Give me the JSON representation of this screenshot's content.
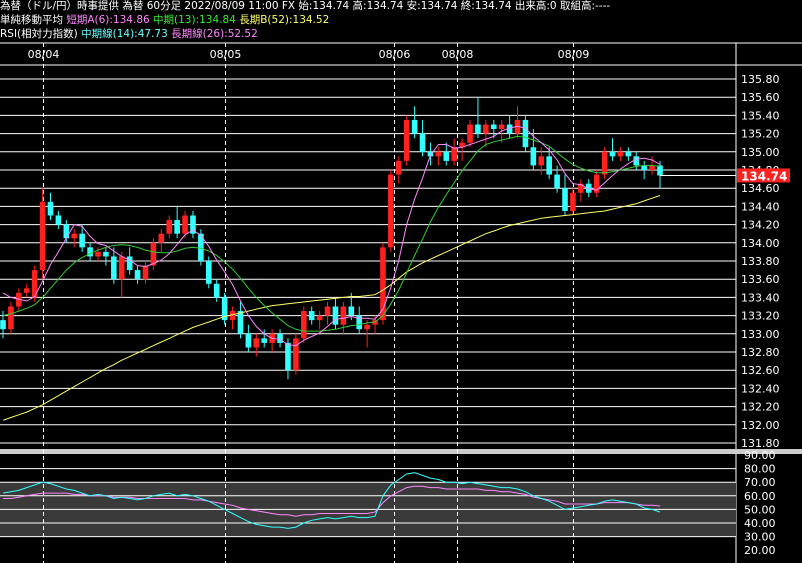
{
  "header": {
    "line1": "為替（ドル/円）時事提供 為替 60分足 2022/08/09 11:00 FX 始:134.74 高:134.74 安:134.74 終:134.74 出来高:0 取組高:----",
    "ma_label": "単純移動平均",
    "ma_short": "短期A(6):134.86",
    "ma_mid": "中期(13):134.84",
    "ma_long": "長期B(52):134.52",
    "rsi_label": "RSI(相対力指数)",
    "rsi_mid": "中期線(14):47.73",
    "rsi_long": "長期線(26):52.52"
  },
  "colors": {
    "bg": "#000000",
    "up": "#ff2020",
    "down": "#33ffff",
    "ma_short": "#ff88ff",
    "ma_mid": "#33cc33",
    "ma_long": "#ffff66",
    "rsi_mid": "#33ffff",
    "rsi_long": "#ff88ff",
    "price_tag_bg": "#ff2020",
    "grid": "#ffffff"
  },
  "chart_data": [
    {
      "type": "candlestick",
      "date_labels": [
        "08/04",
        "08/05",
        "08/06",
        "08/08",
        "08/09"
      ],
      "ylim": [
        131.7,
        135.9
      ],
      "y_ticks": [
        "135.80",
        "135.60",
        "135.40",
        "135.20",
        "135.00",
        "134.80",
        "134.60",
        "134.40",
        "134.20",
        "134.00",
        "133.80",
        "133.60",
        "133.40",
        "133.20",
        "133.00",
        "132.80",
        "132.60",
        "132.40",
        "132.20",
        "132.00",
        "131.80"
      ],
      "current_price": "134.74",
      "candles": [
        [
          133.15,
          133.25,
          132.95,
          133.05
        ],
        [
          133.05,
          133.35,
          133.0,
          133.3
        ],
        [
          133.3,
          133.5,
          133.25,
          133.45
        ],
        [
          133.45,
          133.55,
          133.4,
          133.5
        ],
        [
          133.4,
          133.75,
          133.35,
          133.7
        ],
        [
          133.7,
          134.6,
          133.6,
          134.45
        ],
        [
          134.45,
          134.55,
          134.25,
          134.3
        ],
        [
          134.3,
          134.35,
          134.15,
          134.2
        ],
        [
          134.2,
          134.25,
          134.0,
          134.05
        ],
        [
          134.05,
          134.15,
          133.95,
          134.1
        ],
        [
          134.1,
          134.2,
          133.9,
          133.95
        ],
        [
          133.95,
          134.0,
          133.8,
          133.85
        ],
        [
          133.85,
          133.95,
          133.8,
          133.9
        ],
        [
          133.9,
          133.95,
          133.75,
          133.85
        ],
        [
          133.85,
          133.95,
          133.55,
          133.6
        ],
        [
          133.6,
          133.9,
          133.4,
          133.85
        ],
        [
          133.85,
          133.95,
          133.65,
          133.7
        ],
        [
          133.7,
          133.75,
          133.55,
          133.6
        ],
        [
          133.6,
          133.8,
          133.55,
          133.75
        ],
        [
          133.75,
          134.05,
          133.7,
          134.0
        ],
        [
          134.0,
          134.15,
          133.9,
          134.1
        ],
        [
          134.1,
          134.3,
          134.05,
          134.25
        ],
        [
          134.25,
          134.4,
          134.05,
          134.1
        ],
        [
          134.1,
          134.35,
          134.05,
          134.3
        ],
        [
          134.3,
          134.35,
          134.05,
          134.1
        ],
        [
          134.1,
          134.15,
          133.75,
          133.8
        ],
        [
          133.8,
          133.85,
          133.5,
          133.55
        ],
        [
          133.55,
          133.6,
          133.35,
          133.4
        ],
        [
          133.4,
          133.45,
          133.1,
          133.15
        ],
        [
          133.15,
          133.3,
          133.05,
          133.25
        ],
        [
          133.25,
          133.35,
          132.95,
          133.0
        ],
        [
          133.0,
          133.1,
          132.8,
          132.85
        ],
        [
          132.85,
          133.0,
          132.75,
          132.95
        ],
        [
          132.95,
          133.05,
          132.85,
          132.9
        ],
        [
          132.9,
          133.05,
          132.8,
          133.0
        ],
        [
          133.0,
          133.05,
          132.85,
          132.9
        ],
        [
          132.9,
          132.95,
          132.5,
          132.6
        ],
        [
          132.6,
          133.0,
          132.55,
          132.95
        ],
        [
          132.95,
          133.3,
          132.9,
          133.25
        ],
        [
          133.25,
          133.3,
          133.1,
          133.15
        ],
        [
          133.15,
          133.25,
          133.05,
          133.2
        ],
        [
          133.2,
          133.35,
          133.1,
          133.3
        ],
        [
          133.3,
          133.4,
          133.05,
          133.1
        ],
        [
          133.1,
          133.35,
          133.0,
          133.3
        ],
        [
          133.3,
          133.45,
          133.15,
          133.2
        ],
        [
          133.2,
          133.3,
          133.0,
          133.05
        ],
        [
          133.05,
          133.15,
          132.85,
          133.1
        ],
        [
          133.1,
          133.2,
          133.0,
          133.15
        ],
        [
          133.15,
          134.0,
          133.1,
          133.95
        ],
        [
          133.95,
          134.8,
          133.9,
          134.75
        ],
        [
          134.75,
          134.95,
          134.65,
          134.9
        ],
        [
          134.9,
          135.4,
          134.85,
          135.35
        ],
        [
          135.35,
          135.5,
          135.15,
          135.2
        ],
        [
          135.2,
          135.35,
          134.95,
          135.0
        ],
        [
          135.0,
          135.1,
          134.85,
          134.95
        ],
        [
          134.95,
          135.05,
          134.85,
          135.0
        ],
        [
          135.0,
          135.1,
          134.85,
          134.9
        ],
        [
          134.9,
          135.15,
          134.85,
          135.05
        ],
        [
          135.05,
          135.15,
          134.9,
          135.1
        ],
        [
          135.1,
          135.35,
          135.05,
          135.3
        ],
        [
          135.3,
          135.6,
          135.15,
          135.2
        ],
        [
          135.2,
          135.35,
          135.05,
          135.3
        ],
        [
          135.3,
          135.35,
          135.15,
          135.25
        ],
        [
          135.25,
          135.35,
          135.1,
          135.3
        ],
        [
          135.3,
          135.4,
          135.15,
          135.2
        ],
        [
          135.2,
          135.5,
          135.15,
          135.35
        ],
        [
          135.35,
          135.4,
          135.0,
          135.05
        ],
        [
          135.05,
          135.25,
          134.8,
          134.85
        ],
        [
          134.85,
          135.05,
          134.75,
          134.95
        ],
        [
          134.95,
          135.05,
          134.7,
          134.75
        ],
        [
          134.75,
          134.85,
          134.55,
          134.6
        ],
        [
          134.6,
          134.75,
          134.3,
          134.35
        ],
        [
          134.35,
          134.6,
          134.3,
          134.55
        ],
        [
          134.55,
          134.7,
          134.45,
          134.65
        ],
        [
          134.65,
          134.7,
          134.5,
          134.55
        ],
        [
          134.55,
          134.8,
          134.5,
          134.75
        ],
        [
          134.75,
          135.05,
          134.7,
          135.0
        ],
        [
          135.0,
          135.15,
          134.9,
          134.95
        ],
        [
          134.95,
          135.05,
          134.9,
          135.0
        ],
        [
          135.0,
          135.05,
          134.9,
          134.95
        ],
        [
          134.95,
          135.0,
          134.8,
          134.85
        ],
        [
          134.85,
          134.9,
          134.7,
          134.8
        ],
        [
          134.8,
          134.95,
          134.75,
          134.85
        ],
        [
          134.85,
          134.9,
          134.6,
          134.74
        ]
      ],
      "ma6": [
        133.45,
        133.4,
        133.38,
        133.36,
        133.41,
        133.58,
        133.76,
        133.9,
        134.05,
        134.2,
        134.18,
        134.07,
        133.99,
        133.97,
        133.91,
        133.85,
        133.81,
        133.75,
        133.74,
        133.77,
        133.81,
        133.88,
        133.98,
        134.09,
        134.14,
        134.08,
        133.96,
        133.81,
        133.68,
        133.54,
        133.36,
        133.2,
        133.08,
        133.0,
        132.95,
        132.94,
        132.88,
        132.87,
        132.93,
        132.97,
        133.01,
        133.08,
        133.16,
        133.17,
        133.19,
        133.17,
        133.17,
        133.16,
        133.27,
        133.51,
        133.81,
        134.2,
        134.48,
        134.71,
        134.96,
        135.08,
        135.08,
        135.04,
        135.05,
        135.08,
        135.11,
        135.14,
        135.17,
        135.23,
        135.26,
        135.28,
        135.26,
        135.17,
        135.1,
        135.02,
        134.91,
        134.76,
        134.65,
        134.64,
        134.59,
        134.58,
        134.66,
        134.74,
        134.81,
        134.87,
        134.92,
        134.93,
        134.91,
        134.86
      ],
      "ma13": [
        133.2,
        133.22,
        133.25,
        133.28,
        133.32,
        133.4,
        133.5,
        133.6,
        133.7,
        133.78,
        133.84,
        133.88,
        133.92,
        133.95,
        133.97,
        133.98,
        133.97,
        133.95,
        133.92,
        133.9,
        133.89,
        133.89,
        133.91,
        133.94,
        133.95,
        133.94,
        133.91,
        133.86,
        133.79,
        133.71,
        133.61,
        133.5,
        133.4,
        133.31,
        133.23,
        133.16,
        133.09,
        133.05,
        133.03,
        133.03,
        133.03,
        133.04,
        133.05,
        133.07,
        133.09,
        133.1,
        133.12,
        133.13,
        133.2,
        133.33,
        133.48,
        133.67,
        133.86,
        134.04,
        134.23,
        134.39,
        134.53,
        134.66,
        134.79,
        134.9,
        135.01,
        135.08,
        135.11,
        135.13,
        135.15,
        135.17,
        135.16,
        135.13,
        135.1,
        135.06,
        134.99,
        134.92,
        134.86,
        134.82,
        134.79,
        134.77,
        134.77,
        134.78,
        134.8,
        134.82,
        134.84,
        134.85,
        134.85,
        134.84
      ],
      "ma52": [
        132.05,
        132.08,
        132.11,
        132.14,
        132.18,
        132.22,
        132.27,
        132.32,
        132.37,
        132.42,
        132.47,
        132.52,
        132.57,
        132.62,
        132.66,
        132.71,
        132.75,
        132.79,
        132.83,
        132.87,
        132.91,
        132.95,
        132.99,
        133.03,
        133.07,
        133.1,
        133.13,
        133.16,
        133.19,
        133.21,
        133.23,
        133.25,
        133.27,
        133.29,
        133.31,
        133.32,
        133.33,
        133.34,
        133.35,
        133.36,
        133.37,
        133.38,
        133.39,
        133.4,
        133.41,
        133.41,
        133.42,
        133.43,
        133.48,
        133.54,
        133.61,
        133.68,
        133.73,
        133.78,
        133.82,
        133.86,
        133.9,
        133.94,
        133.98,
        134.02,
        134.06,
        134.1,
        134.13,
        134.16,
        134.19,
        134.21,
        134.23,
        134.25,
        134.27,
        134.28,
        134.29,
        134.3,
        134.31,
        134.32,
        134.33,
        134.34,
        134.35,
        134.37,
        134.39,
        134.41,
        134.43,
        134.46,
        134.49,
        134.52
      ]
    },
    {
      "type": "line",
      "title": "RSI",
      "ylim": [
        20,
        90
      ],
      "y_ticks": [
        "90.00",
        "80.00",
        "70.00",
        "60.00",
        "50.00",
        "40.00",
        "30.00",
        "20.00"
      ],
      "series": [
        {
          "name": "中期線(14)",
          "values": [
            62,
            63,
            64,
            66,
            68,
            70,
            69,
            67,
            65,
            64,
            62,
            60,
            61,
            60,
            58,
            59,
            58,
            57,
            58,
            60,
            61,
            62,
            60,
            61,
            60,
            58,
            56,
            53,
            50,
            47,
            44,
            41,
            39,
            38,
            37,
            37,
            36,
            37,
            40,
            42,
            43,
            44,
            43,
            44,
            45,
            44,
            44,
            45,
            60,
            68,
            72,
            76,
            77,
            75,
            73,
            72,
            70,
            70,
            69,
            70,
            69,
            68,
            67,
            66,
            66,
            65,
            63,
            60,
            58,
            56,
            53,
            50,
            51,
            52,
            53,
            54,
            56,
            57,
            56,
            55,
            54,
            51,
            50,
            48
          ],
          "color": "#33ffff"
        },
        {
          "name": "長期線(26)",
          "values": [
            58,
            58,
            59,
            60,
            61,
            62,
            62,
            62,
            62,
            61,
            61,
            60,
            60,
            60,
            59,
            59,
            59,
            58,
            58,
            58,
            58,
            58,
            58,
            58,
            57,
            57,
            56,
            55,
            54,
            53,
            51,
            50,
            49,
            48,
            47,
            46,
            46,
            45,
            46,
            46,
            47,
            47,
            47,
            47,
            47,
            47,
            47,
            48,
            55,
            60,
            63,
            66,
            67,
            67,
            66,
            66,
            65,
            65,
            65,
            65,
            65,
            64,
            64,
            63,
            63,
            62,
            61,
            59,
            58,
            57,
            56,
            54,
            54,
            54,
            54,
            54,
            55,
            55,
            55,
            55,
            54,
            53,
            53,
            52.5
          ],
          "color": "#ff88ff"
        }
      ]
    }
  ]
}
